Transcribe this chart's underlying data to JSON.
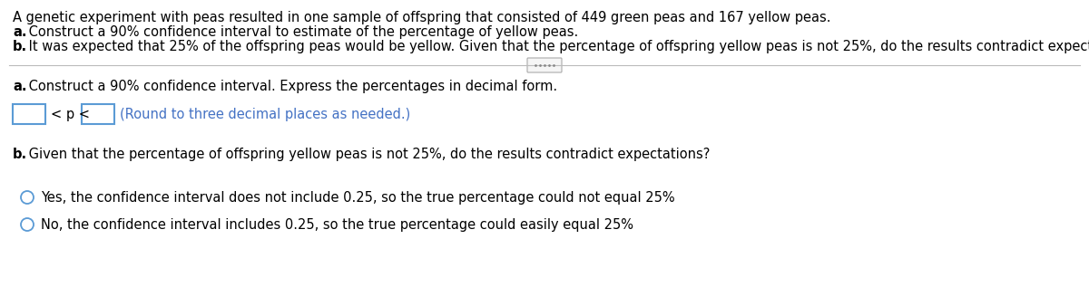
{
  "bg_color": "#ffffff",
  "text_color": "#000000",
  "blue_color": "#4472C4",
  "light_blue_border": "#5B9BD5",
  "intro_line1": "A genetic experiment with peas resulted in one sample of offspring that consisted of 449 green peas and 167 yellow peas.",
  "intro_line2_bold": "a.",
  "intro_line2_rest": " Construct a 90% confidence interval to estimate of the percentage of yellow peas.",
  "intro_line3_bold": "b.",
  "intro_line3_rest": " It was expected that 25% of the offspring peas would be yellow. Given that the percentage of offspring yellow peas is not 25%, do the results contradict expectations?",
  "part_a_label_bold": "a.",
  "part_a_label_rest": " Construct a 90% confidence interval. Express the percentages in decimal form.",
  "ci_text": "< p <",
  "ci_hint_blue": "(Round to three decimal places as needed.)",
  "part_b_label_bold": "b.",
  "part_b_label_rest": " Given that the percentage of offspring yellow peas is not 25%, do the results contradict expectations?",
  "option1": "Yes, the confidence interval does not include 0.25, so the true percentage could not equal 25%",
  "option2": "No, the confidence interval includes 0.25, so the true percentage could easily equal 25%",
  "figsize": [
    12.0,
    3.38
  ],
  "dpi": 100
}
